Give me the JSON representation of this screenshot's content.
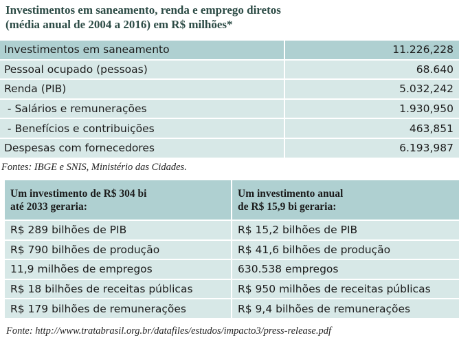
{
  "header": {
    "title": [
      "Investimentos em saneamento, renda e emprego diretos",
      "(média anual de 2004 a 2016) em R$ milhões*"
    ]
  },
  "table1": {
    "rows": [
      [
        "Investimentos em saneamento",
        "11.226,228"
      ],
      [
        "Pessoal ocupado (pessoas)",
        "68.640"
      ],
      [
        "Renda (PIB)",
        "5.032,242"
      ],
      [
        " - Salários e remunerações",
        "1.930,950"
      ],
      [
        " - Benefícios e contribuições",
        "463,851"
      ],
      [
        "Despesas com fornecedores",
        "6.193,987"
      ]
    ],
    "source": "Fontes: IBGE e SNIS, Ministério das Cidades."
  },
  "table2": {
    "header": [
      [
        "Um investimento de R$ 304 bi",
        "até 2033 geraria:"
      ],
      [
        "Um investimento anual",
        "de R$ 15,9 bi geraria:"
      ]
    ],
    "rows": [
      [
        "R$ 289 bilhões de PIB",
        "R$ 15,2 bilhões de PIB"
      ],
      [
        "R$ 790 bilhões de produção",
        "R$ 41,6 bilhões de produção"
      ],
      [
        "11,9 milhões de empregos",
        "630.538 empregos"
      ],
      [
        "R$ 18 bilhões de receitas públicas",
        "R$ 950 milhões de receitas públicas"
      ],
      [
        "R$ 179 bilhões de remunerações",
        "R$ 9,4 bilhões de remunerações"
      ]
    ],
    "source": "Fonte: http://www.tratabrasil.org.br/datafiles/estudos/impacto3/press-release.pdf"
  }
}
